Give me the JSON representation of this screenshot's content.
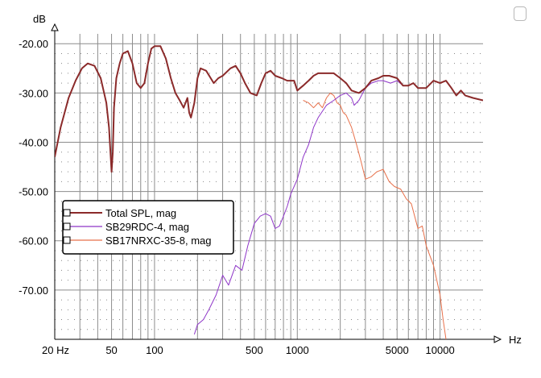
{
  "chart_data": {
    "type": "line",
    "xscale": "log",
    "xlim": [
      20,
      20000
    ],
    "ylim": [
      -80,
      -18
    ],
    "xlabel": "Hz",
    "ylabel": "dB",
    "x_ticks": [
      {
        "value": 20,
        "label": "20 Hz"
      },
      {
        "value": 50,
        "label": "50"
      },
      {
        "value": 100,
        "label": "100"
      },
      {
        "value": 500,
        "label": "500"
      },
      {
        "value": 1000,
        "label": "1000"
      },
      {
        "value": 5000,
        "label": "5000"
      },
      {
        "value": 10000,
        "label": "10000"
      }
    ],
    "y_ticks": [
      {
        "value": -20,
        "label": "-20.00"
      },
      {
        "value": -30,
        "label": "-30.00"
      },
      {
        "value": -40,
        "label": "-40.00"
      },
      {
        "value": -50,
        "label": "-50.00"
      },
      {
        "value": -60,
        "label": "-60.00"
      },
      {
        "value": -70,
        "label": "-70.00"
      }
    ],
    "grid": true,
    "legend_position": "left-middle",
    "series": [
      {
        "name": "Total SPL, mag",
        "color": "#8b2a2a",
        "x": [
          20,
          22,
          25,
          28,
          31,
          34,
          38,
          42,
          46,
          48,
          50,
          51,
          52,
          54,
          57,
          60,
          65,
          70,
          75,
          80,
          85,
          90,
          95,
          100,
          110,
          120,
          130,
          140,
          150,
          160,
          170,
          175,
          180,
          190,
          200,
          210,
          230,
          260,
          280,
          300,
          340,
          370,
          400,
          430,
          470,
          520,
          560,
          600,
          650,
          700,
          780,
          850,
          950,
          1000,
          1100,
          1200,
          1300,
          1400,
          1600,
          1800,
          2000,
          2200,
          2400,
          2700,
          3000,
          3300,
          3700,
          4000,
          4400,
          5000,
          5500,
          6000,
          6500,
          7000,
          8000,
          9000,
          10000,
          11000,
          12000,
          13000,
          14000,
          15000,
          17000,
          20000
        ],
        "values": [
          -43,
          -37,
          -31,
          -27.5,
          -25,
          -24,
          -24.5,
          -27,
          -32,
          -37,
          -46,
          -42,
          -33,
          -27,
          -24,
          -22,
          -21.5,
          -24,
          -28,
          -29,
          -28,
          -24,
          -21,
          -20.5,
          -20.5,
          -23,
          -27,
          -30,
          -31.5,
          -33,
          -31,
          -34,
          -35,
          -32,
          -27,
          -25,
          -25.5,
          -28,
          -27,
          -26.5,
          -25,
          -24.5,
          -26,
          -28,
          -30,
          -30.5,
          -28,
          -26,
          -25.5,
          -26.5,
          -27,
          -27.5,
          -27.5,
          -29.5,
          -28.5,
          -27.5,
          -26.5,
          -26,
          -26,
          -26,
          -27,
          -28,
          -29.5,
          -30,
          -29,
          -27.5,
          -27,
          -26.5,
          -26.5,
          -27,
          -28.5,
          -28.5,
          -28,
          -29,
          -29,
          -27.5,
          -28,
          -27.5,
          -29,
          -30.5,
          -29.5,
          -30.5,
          -31,
          -31.5
        ]
      },
      {
        "name": "SB29RDC-4, mag",
        "color": "#8e35c8",
        "x": [
          190,
          200,
          220,
          240,
          270,
          300,
          330,
          370,
          410,
          450,
          500,
          550,
          600,
          650,
          700,
          750,
          800,
          850,
          900,
          1000,
          1100,
          1200,
          1300,
          1400,
          1600,
          1800,
          2000,
          2200,
          2400,
          2500,
          2700,
          3000,
          3300,
          3700,
          4000,
          4500,
          5000,
          5500,
          6000,
          6500,
          7000,
          8000,
          9000,
          10000,
          11000,
          12000,
          13000,
          14000,
          15000,
          17000,
          20000
        ],
        "values": [
          -79,
          -77,
          -76,
          -74,
          -71,
          -67,
          -69,
          -65,
          -66,
          -61,
          -56.5,
          -55,
          -54.5,
          -55,
          -57.5,
          -57,
          -55,
          -53,
          -50.5,
          -47.5,
          -43,
          -40.5,
          -37,
          -35,
          -32.5,
          -31.5,
          -30.5,
          -30,
          -31,
          -32.5,
          -31.5,
          -29,
          -28,
          -27.5,
          -27.5,
          -28,
          -27.5,
          -28.5,
          -28.5,
          -28,
          -29,
          -29,
          -27.5,
          -28,
          -27.5,
          -29,
          -30.5,
          -29.5,
          -30.5,
          -31,
          -31.5
        ]
      },
      {
        "name": "SB17NRXC-35-8, mag",
        "color": "#e8704a",
        "x": [
          1100,
          1200,
          1300,
          1400,
          1500,
          1600,
          1700,
          1800,
          1900,
          2000,
          2100,
          2200,
          2400,
          2600,
          2800,
          3000,
          3300,
          3600,
          4000,
          4400,
          4800,
          5300,
          5800,
          6300,
          7000,
          7500,
          8000,
          9000,
          10000,
          10500,
          11000
        ],
        "values": [
          -31.5,
          -32,
          -33,
          -32,
          -33,
          -31,
          -30,
          -30.5,
          -32,
          -32.5,
          -34,
          -34.5,
          -37,
          -40.5,
          -44,
          -47.5,
          -47,
          -46,
          -45.5,
          -48,
          -49,
          -49.5,
          -51.5,
          -52.5,
          -57.5,
          -57,
          -61,
          -65,
          -71,
          -76,
          -80
        ]
      }
    ]
  }
}
